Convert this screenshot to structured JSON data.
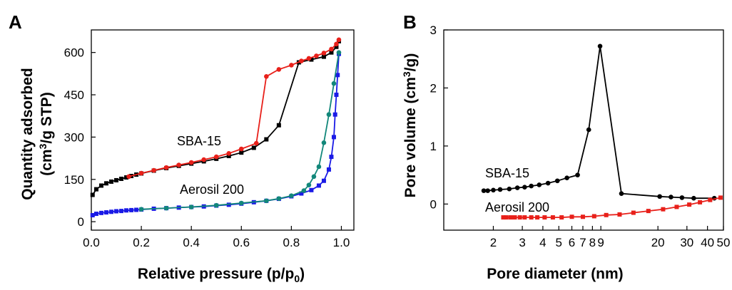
{
  "chart_data": [
    {
      "panel": "A",
      "type": "line",
      "xlabel": "Relative pressure (p/p0)",
      "xlabel_main": "Relative pressure (p/p",
      "xlabel_sub": "0",
      "xlabel_end": ")",
      "ylabel": "Quantity adsorbed (cm3/g STP)",
      "ylabel_line1": "Quantity adsorbed",
      "ylabel_line2_pre": "(cm",
      "ylabel_line2_sup": "3",
      "ylabel_line2_post": "/g STP)",
      "xlim": [
        0.0,
        1.05
      ],
      "ylim": [
        -30,
        680
      ],
      "xticks": [
        "0.0",
        "0.2",
        "0.4",
        "0.6",
        "0.8",
        "1.0"
      ],
      "xtick_values": [
        0.0,
        0.2,
        0.4,
        0.6,
        0.8,
        1.0
      ],
      "yticks": [
        "0",
        "150",
        "300",
        "450",
        "600"
      ],
      "ytick_values": [
        0,
        150,
        300,
        450,
        600
      ],
      "annotations": [
        {
          "text": "SBA-15",
          "x": 0.22,
          "y": 310
        },
        {
          "text": "Aerosil 200",
          "x": 0.26,
          "y": 112
        }
      ],
      "series": [
        {
          "name": "SBA-15",
          "branch": "adsorption",
          "color": "#000000",
          "marker": "square",
          "x": [
            0.005,
            0.02,
            0.04,
            0.06,
            0.08,
            0.1,
            0.12,
            0.14,
            0.16,
            0.18,
            0.2,
            0.25,
            0.3,
            0.35,
            0.4,
            0.45,
            0.5,
            0.55,
            0.6,
            0.65,
            0.7,
            0.75,
            0.83,
            0.88,
            0.93,
            0.96,
            0.98,
            0.99
          ],
          "y": [
            95,
            115,
            128,
            136,
            142,
            147,
            152,
            157,
            162,
            167,
            171,
            181,
            190,
            198,
            206,
            214,
            223,
            233,
            245,
            262,
            292,
            342,
            565,
            575,
            585,
            600,
            620,
            640
          ]
        },
        {
          "name": "SBA-15",
          "branch": "desorption",
          "color": "#e8201a",
          "marker": "circle",
          "x": [
            0.99,
            0.98,
            0.96,
            0.93,
            0.9,
            0.87,
            0.84,
            0.8,
            0.75,
            0.7,
            0.66,
            0.6,
            0.55,
            0.5,
            0.45,
            0.4,
            0.35,
            0.3,
            0.25,
            0.2,
            0.15
          ],
          "y": [
            645,
            630,
            612,
            598,
            588,
            579,
            570,
            555,
            540,
            515,
            278,
            258,
            242,
            230,
            220,
            210,
            201,
            192,
            182,
            172,
            160
          ]
        },
        {
          "name": "Aerosil 200",
          "branch": "adsorption",
          "color": "#1a1ae6",
          "marker": "square",
          "x": [
            0.005,
            0.02,
            0.04,
            0.06,
            0.08,
            0.1,
            0.12,
            0.14,
            0.16,
            0.18,
            0.2,
            0.25,
            0.3,
            0.35,
            0.4,
            0.45,
            0.5,
            0.55,
            0.6,
            0.65,
            0.7,
            0.75,
            0.8,
            0.84,
            0.88,
            0.91,
            0.93,
            0.95,
            0.96,
            0.97,
            0.975,
            0.98,
            0.985,
            0.99
          ],
          "y": [
            23,
            28,
            31,
            33,
            35,
            37,
            38,
            40,
            41,
            42,
            43,
            46,
            48,
            50,
            52,
            54,
            57,
            60,
            64,
            69,
            74,
            81,
            90,
            100,
            112,
            128,
            145,
            185,
            230,
            300,
            380,
            450,
            520,
            595
          ]
        },
        {
          "name": "Aerosil 200",
          "branch": "desorption",
          "color": "#12877a",
          "marker": "circle",
          "x": [
            0.99,
            0.97,
            0.95,
            0.93,
            0.91,
            0.89,
            0.87,
            0.85,
            0.8,
            0.75,
            0.7,
            0.6,
            0.5,
            0.4,
            0.3,
            0.2
          ],
          "y": [
            600,
            490,
            380,
            280,
            195,
            160,
            130,
            110,
            92,
            82,
            74,
            66,
            58,
            52,
            48,
            44
          ]
        }
      ]
    },
    {
      "panel": "B",
      "type": "line",
      "xlabel": "Pore diameter (nm)",
      "ylabel": "Pore volume (cm3/g)",
      "ylabel_pre": "Pore volume (cm",
      "ylabel_sup": "3",
      "ylabel_post": "/g)",
      "xscale": "log",
      "xlim": [
        1.0,
        50
      ],
      "ylim": [
        -0.45,
        3.0
      ],
      "xticks": [
        "2",
        "3",
        "4",
        "5",
        "6",
        "7",
        "8",
        "9",
        "20",
        "30",
        "40",
        "50"
      ],
      "xtick_values": [
        2,
        3,
        4,
        5,
        6,
        7,
        8,
        9,
        20,
        30,
        40,
        50
      ],
      "yticks": [
        "0",
        "1",
        "2",
        "3"
      ],
      "ytick_values": [
        0,
        1,
        2,
        3
      ],
      "annotations": [
        {
          "text": "SBA-15",
          "x": 2.0,
          "y": 0.5
        },
        {
          "text": "Aerosil 200",
          "x": 2.0,
          "y": -0.05
        }
      ],
      "series": [
        {
          "name": "SBA-15",
          "color": "#000000",
          "marker": "circle",
          "x": [
            1.75,
            1.85,
            2.0,
            2.2,
            2.5,
            2.8,
            3.1,
            3.4,
            3.8,
            4.3,
            4.9,
            5.6,
            6.5,
            7.6,
            8.9,
            12.0,
            20.5,
            24.0,
            28.0,
            33.0,
            44.0
          ],
          "y": [
            0.23,
            0.23,
            0.24,
            0.25,
            0.26,
            0.28,
            0.29,
            0.31,
            0.33,
            0.36,
            0.4,
            0.45,
            0.5,
            1.28,
            2.72,
            0.18,
            0.13,
            0.12,
            0.11,
            0.1,
            0.1
          ]
        },
        {
          "name": "Aerosil 200",
          "color": "#e8201a",
          "marker": "square",
          "x": [
            2.3,
            2.4,
            2.55,
            2.7,
            2.9,
            3.1,
            3.4,
            3.7,
            4.1,
            4.6,
            5.2,
            6.0,
            7.0,
            8.2,
            9.7,
            11.7,
            14.2,
            17.5,
            21.5,
            26.0,
            31.0,
            36.0,
            41.5,
            48.0
          ],
          "y": [
            -0.23,
            -0.23,
            -0.23,
            -0.23,
            -0.23,
            -0.23,
            -0.23,
            -0.23,
            -0.23,
            -0.23,
            -0.23,
            -0.22,
            -0.22,
            -0.21,
            -0.19,
            -0.18,
            -0.15,
            -0.12,
            -0.09,
            -0.05,
            -0.01,
            0.03,
            0.07,
            0.11
          ]
        }
      ]
    }
  ],
  "panels": {
    "a_letter": "A",
    "b_letter": "B"
  }
}
